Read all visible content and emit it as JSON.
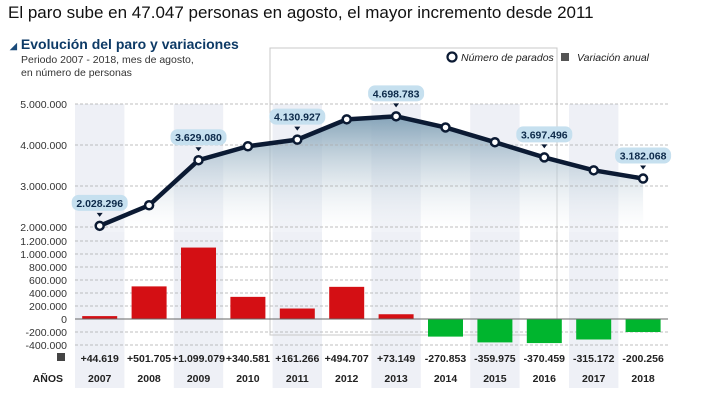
{
  "headline": "El paro sube en 47.047 personas en agosto, el mayor incremento desde 2011",
  "subtitle": "Evolución del paro y variaciones",
  "note_line1": "Periodo 2007 - 2018, mes de agosto,",
  "note_line2": "en número de personas",
  "years_label": "AÑOS",
  "colors": {
    "line": "#0b1a33",
    "increase": "#d40f14",
    "decrease": "#00b52e",
    "pill": "#c6e0ef",
    "band": "#eef0f6",
    "title": "#0d3a66"
  },
  "chart_data": {
    "type": "line+bar",
    "categories": [
      "2007",
      "2008",
      "2009",
      "2010",
      "2011",
      "2012",
      "2013",
      "2014",
      "2015",
      "2016",
      "2017",
      "2018"
    ],
    "legend": [
      "Número de parados",
      "Variación anual"
    ],
    "legend_position": "top-right",
    "grid": true,
    "series": [
      {
        "name": "Número de parados",
        "type": "line",
        "values": [
          2028296,
          2530001,
          3629080,
          3969661,
          4130927,
          4625634,
          4698783,
          4427930,
          4067955,
          3697496,
          3382324,
          3182068
        ],
        "labeled": [
          "2.028.296",
          null,
          "3.629.080",
          null,
          "4.130.927",
          null,
          "4.698.783",
          null,
          null,
          "3.697.496",
          null,
          "3.182.068"
        ]
      },
      {
        "name": "Variación anual",
        "type": "bar",
        "values": [
          44619,
          501705,
          1099079,
          340581,
          161266,
          494707,
          73149,
          -270853,
          -359975,
          -370459,
          -315172,
          -200256
        ],
        "labels": [
          "+44.619",
          "+501.705",
          "+1.099.079",
          "+340.581",
          "+161.266",
          "+494.707",
          "+73.149",
          "-270.853",
          "-359.975",
          "-370.459",
          "-315.172",
          "-200.256"
        ]
      }
    ],
    "upper_axis": {
      "ylim": [
        2000000,
        5000000
      ],
      "ticks": [
        "5.000.000",
        "4.000.000",
        "3.000.000",
        "2.000.000"
      ],
      "tick_values": [
        5000000,
        4000000,
        3000000,
        2000000
      ]
    },
    "lower_axis": {
      "ylim": [
        -400000,
        1200000
      ],
      "ticks": [
        "1.200.000",
        "1.000.000",
        "800.000",
        "600.000",
        "400.000",
        "200.000",
        "0",
        "-200.000",
        "-400.000"
      ],
      "tick_values": [
        1200000,
        1000000,
        800000,
        600000,
        400000,
        200000,
        0,
        -200000,
        -400000
      ]
    }
  }
}
